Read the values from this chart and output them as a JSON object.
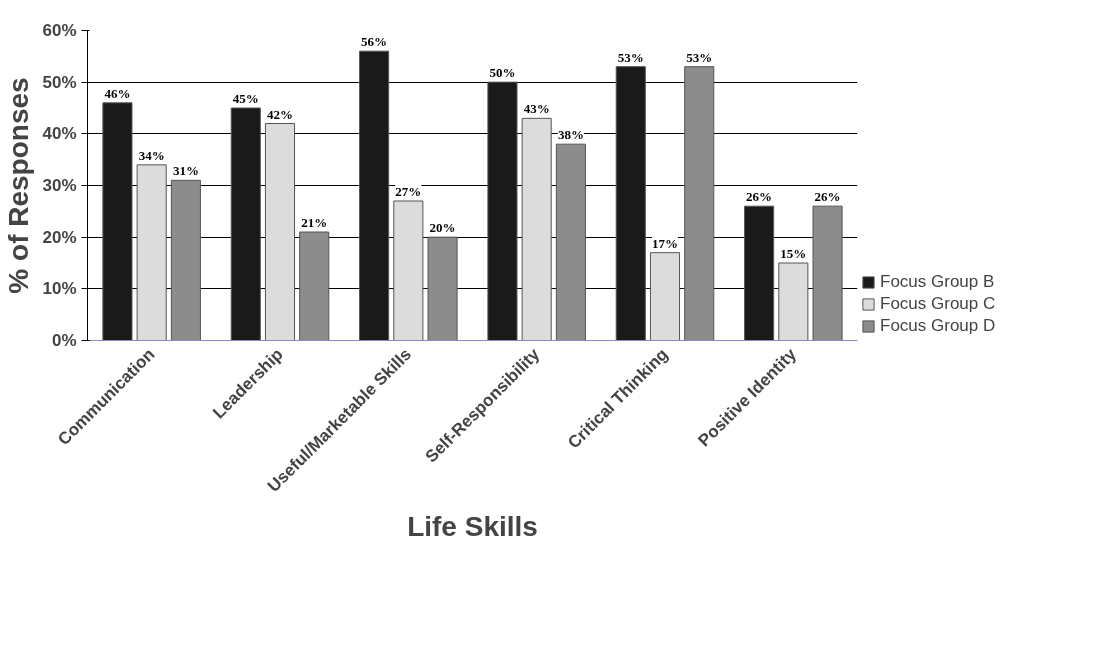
{
  "chart_data": {
    "type": "bar",
    "xlabel": "Life Skills",
    "ylabel": "% of Responses",
    "categories": [
      "Communication",
      "Leadership",
      "Useful/Marketable Skills",
      "Self-Responsibility",
      "Critical Thinking",
      "Positive Identity"
    ],
    "series": [
      {
        "name": "Focus Group B",
        "color": "#1a1a1a",
        "values": [
          46,
          45,
          56,
          50,
          53,
          26
        ],
        "value_labels": [
          "46%",
          "45%",
          "56%",
          "50%",
          "53%",
          "26%"
        ]
      },
      {
        "name": "Focus Group C",
        "color": "#dcdcdc",
        "values": [
          34,
          42,
          27,
          43,
          17,
          15
        ],
        "value_labels": [
          "34%",
          "42%",
          "27%",
          "43%",
          "17%",
          "15%"
        ]
      },
      {
        "name": "Focus Group D",
        "color": "#8c8c8c",
        "values": [
          31,
          21,
          20,
          38,
          53,
          26
        ],
        "value_labels": [
          "31%",
          "21%",
          "20%",
          "38%",
          "53%",
          "26%"
        ]
      }
    ],
    "ylim": [
      0,
      60
    ],
    "yticks": [
      {
        "value": 0,
        "label": "0%"
      },
      {
        "value": 10,
        "label": "10%"
      },
      {
        "value": 20,
        "label": "20%"
      },
      {
        "value": 30,
        "label": "30%"
      },
      {
        "value": 40,
        "label": "40%"
      },
      {
        "value": 50,
        "label": "50%"
      },
      {
        "value": 60,
        "label": "60%"
      }
    ],
    "grid": "y",
    "legend": "bottom right"
  }
}
